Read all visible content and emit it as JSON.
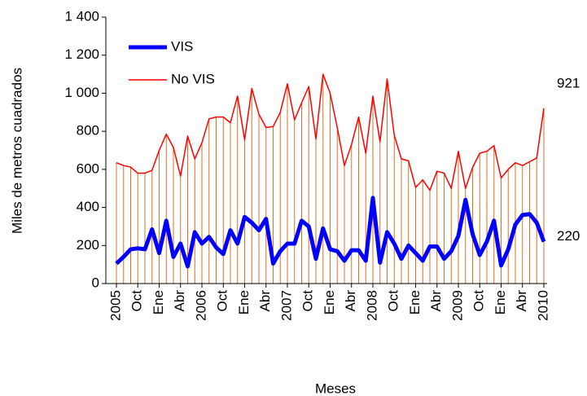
{
  "chart_data": {
    "type": "line",
    "x_label": "Meses",
    "y_label": "Miles de metros cuadrados",
    "categories": [
      "2005",
      null,
      null,
      "Oct",
      null,
      null,
      "Ene",
      null,
      null,
      "Abr",
      null,
      null,
      "2006",
      null,
      null,
      "Oct",
      null,
      null,
      "Ene",
      null,
      null,
      "Abr",
      null,
      null,
      "2007",
      null,
      null,
      "Oct",
      null,
      null,
      "Ene",
      null,
      null,
      "Abr",
      null,
      null,
      "2008",
      null,
      null,
      "Oct",
      null,
      null,
      "Ene",
      null,
      null,
      "Abr",
      null,
      null,
      "2009",
      null,
      null,
      "Oct",
      null,
      null,
      "Ene",
      null,
      null,
      "Abr",
      null,
      null,
      "2010"
    ],
    "series": [
      {
        "name": "VIS",
        "color": "#0000ff",
        "values": [
          105,
          140,
          180,
          185,
          180,
          285,
          160,
          330,
          140,
          210,
          90,
          270,
          210,
          245,
          190,
          155,
          280,
          210,
          350,
          320,
          280,
          340,
          105,
          170,
          210,
          210,
          330,
          300,
          130,
          290,
          180,
          170,
          120,
          175,
          175,
          120,
          450,
          110,
          270,
          210,
          130,
          200,
          160,
          120,
          195,
          195,
          130,
          170,
          250,
          440,
          260,
          150,
          220,
          330,
          95,
          180,
          310,
          360,
          365,
          320,
          220
        ]
      },
      {
        "name": "No VIS",
        "color": "#ff0000",
        "values": [
          635,
          620,
          612,
          580,
          580,
          595,
          700,
          785,
          715,
          565,
          775,
          655,
          740,
          865,
          875,
          875,
          845,
          985,
          755,
          1025,
          890,
          820,
          825,
          900,
          1050,
          860,
          950,
          1035,
          760,
          1100,
          1000,
          820,
          620,
          730,
          875,
          685,
          985,
          745,
          1075,
          780,
          655,
          645,
          505,
          545,
          490,
          590,
          580,
          500,
          695,
          500,
          610,
          685,
          695,
          725,
          555,
          600,
          635,
          620,
          640,
          660,
          921
        ]
      }
    ],
    "drop_line_color": "#e07020",
    "annotations": [
      "921",
      "220"
    ],
    "ylim": [
      0,
      1400
    ],
    "yticks": [
      0,
      200,
      400,
      600,
      800,
      {
        "value": 1000,
        "label": "1 000"
      },
      {
        "value": 1200,
        "label": "1 200"
      },
      {
        "value": 1400,
        "label": "1 400"
      }
    ],
    "legend": "upper left"
  }
}
